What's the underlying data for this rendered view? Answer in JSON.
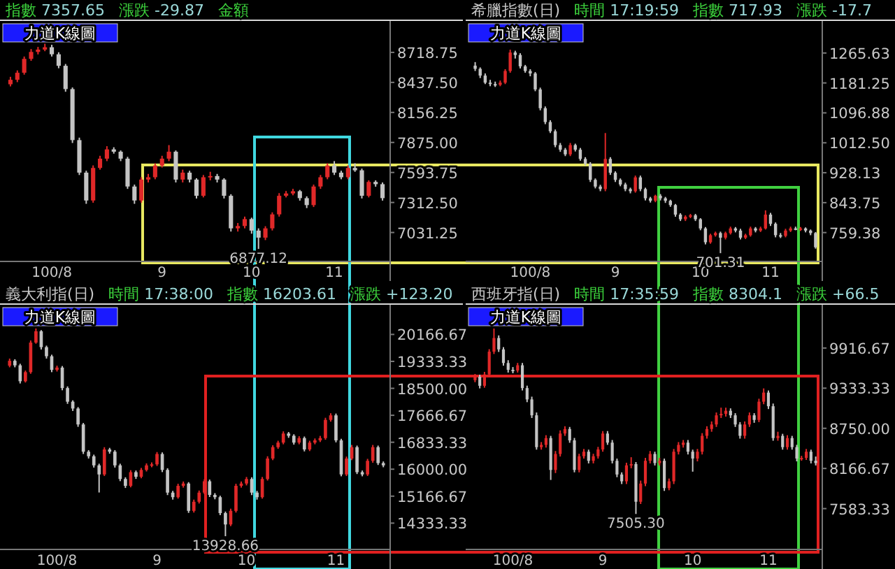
{
  "chart_data": [
    {
      "type": "candlestick",
      "subtitle": "力道K線圖",
      "annotations": [
        "指數 7357.65",
        "漲跌 -29.87",
        "金額",
        {
          "text": "6877.12",
          "y": 6877.12
        }
      ],
      "categories": [
        null,
        null,
        null,
        null,
        null,
        null,
        "100/8",
        null,
        null,
        null,
        null,
        null,
        null,
        null,
        null,
        null,
        null,
        null,
        null,
        null,
        null,
        null,
        "9",
        null,
        null,
        null,
        null,
        null,
        null,
        null,
        null,
        null,
        null,
        null,
        null,
        "10",
        null,
        null,
        null,
        null,
        null,
        null,
        null,
        null,
        null,
        null,
        null,
        "11",
        null,
        null,
        null,
        null,
        null,
        null,
        null
      ],
      "ohlc": [
        [
          8420,
          8490,
          8400,
          8462
        ],
        [
          8462,
          8550,
          8440,
          8528
        ],
        [
          8528,
          8680,
          8510,
          8658
        ],
        [
          8658,
          8750,
          8640,
          8723
        ],
        [
          8723,
          8770,
          8700,
          8745
        ],
        [
          8745,
          8800,
          8730,
          8767
        ],
        [
          8767,
          8790,
          8680,
          8701
        ],
        [
          8701,
          8720,
          8570,
          8593
        ],
        [
          8593,
          8610,
          8350,
          8375
        ],
        [
          8375,
          8390,
          7870,
          7897
        ],
        [
          7897,
          7920,
          7570,
          7592
        ],
        [
          7592,
          7610,
          7300,
          7331
        ],
        [
          7331,
          7660,
          7310,
          7636
        ],
        [
          7636,
          7750,
          7620,
          7723
        ],
        [
          7723,
          7840,
          7700,
          7810
        ],
        [
          7810,
          7830,
          7770,
          7788
        ],
        [
          7788,
          7800,
          7700,
          7723
        ],
        [
          7723,
          7740,
          7440,
          7462
        ],
        [
          7462,
          7480,
          7300,
          7331
        ],
        [
          7331,
          7550,
          7310,
          7527
        ],
        [
          7527,
          7580,
          7500,
          7549
        ],
        [
          7549,
          7680,
          7530,
          7658
        ],
        [
          7658,
          7750,
          7640,
          7723
        ],
        [
          7723,
          7850,
          7700,
          7788
        ],
        [
          7788,
          7800,
          7500,
          7527
        ],
        [
          7527,
          7620,
          7500,
          7592
        ],
        [
          7592,
          7610,
          7500,
          7527
        ],
        [
          7527,
          7540,
          7350,
          7375
        ],
        [
          7375,
          7570,
          7360,
          7549
        ],
        [
          7549,
          7600,
          7520,
          7560
        ],
        [
          7560,
          7580,
          7500,
          7527
        ],
        [
          7527,
          7540,
          7350,
          7375
        ],
        [
          7375,
          7390,
          7040,
          7070
        ],
        [
          7070,
          7120,
          7040,
          7092
        ],
        [
          7092,
          7180,
          7070,
          7157
        ],
        [
          7157,
          7170,
          7020,
          7049
        ],
        [
          7049,
          7070,
          6877.12,
          6983
        ],
        [
          6983,
          7090,
          6960,
          7070
        ],
        [
          7070,
          7220,
          7050,
          7201
        ],
        [
          7201,
          7400,
          7180,
          7375
        ],
        [
          7375,
          7420,
          7360,
          7397
        ],
        [
          7397,
          7440,
          7380,
          7418
        ],
        [
          7418,
          7430,
          7330,
          7353
        ],
        [
          7353,
          7370,
          7260,
          7288
        ],
        [
          7288,
          7480,
          7270,
          7462
        ],
        [
          7462,
          7570,
          7440,
          7549
        ],
        [
          7549,
          7680,
          7530,
          7658
        ],
        [
          7658,
          7700,
          7570,
          7592
        ],
        [
          7592,
          7610,
          7530,
          7549
        ],
        [
          7549,
          7660,
          7530,
          7636
        ],
        [
          7636,
          7680,
          7600,
          7614
        ],
        [
          7614,
          7630,
          7350,
          7375
        ],
        [
          7375,
          7520,
          7360,
          7505
        ],
        [
          7505,
          7520,
          7460,
          7484
        ],
        [
          7484,
          7500,
          7330,
          7353
        ]
      ],
      "ylim": [
        6760,
        9000
      ],
      "yticks": [
        {
          "value": 7031.25,
          "label": "7031.25"
        },
        {
          "value": 7312.5,
          "label": "7312.50"
        },
        {
          "value": 7593.75,
          "label": "7593.75"
        },
        {
          "value": 7875,
          "label": "7875.00"
        },
        {
          "value": 8156.25,
          "label": "8156.25"
        },
        {
          "value": 8437.5,
          "label": "8437.50"
        },
        {
          "value": 8718.75,
          "label": "8718.75"
        }
      ]
    },
    {
      "type": "candlestick",
      "title": "希臘指數(日)",
      "subtitle": "力道K線圖",
      "annotations": [
        "時間 17:19:59",
        "指數 717.93",
        "漲跌 -17.7",
        {
          "text": "701.31",
          "y": 701.31
        }
      ],
      "categories": [
        null,
        null,
        null,
        null,
        null,
        null,
        null,
        null,
        null,
        null,
        null,
        "100/8",
        null,
        null,
        null,
        null,
        null,
        null,
        null,
        null,
        null,
        null,
        null,
        null,
        null,
        null,
        null,
        null,
        "9",
        null,
        null,
        null,
        null,
        null,
        null,
        null,
        null,
        null,
        null,
        null,
        null,
        null,
        null,
        null,
        null,
        "10",
        null,
        null,
        null,
        null,
        null,
        null,
        null,
        null,
        null,
        null,
        null,
        null,
        null,
        "11",
        null,
        null,
        null,
        null,
        null,
        null,
        null,
        null,
        null
      ],
      "ohlc": [
        [
          1230,
          1240,
          1215,
          1221
        ],
        [
          1221,
          1225,
          1195,
          1202
        ],
        [
          1202,
          1208,
          1178,
          1182
        ],
        [
          1182,
          1190,
          1172,
          1178
        ],
        [
          1178,
          1185,
          1170,
          1176
        ],
        [
          1176,
          1188,
          1172,
          1182
        ],
        [
          1182,
          1220,
          1178,
          1215
        ],
        [
          1215,
          1275,
          1210,
          1267
        ],
        [
          1267,
          1272,
          1250,
          1260
        ],
        [
          1260,
          1265,
          1222,
          1228
        ],
        [
          1228,
          1232,
          1210,
          1215
        ],
        [
          1215,
          1220,
          1200,
          1208
        ],
        [
          1208,
          1212,
          1158,
          1163
        ],
        [
          1163,
          1168,
          1104,
          1110
        ],
        [
          1110,
          1115,
          1065,
          1071
        ],
        [
          1071,
          1076,
          1040,
          1045
        ],
        [
          1045,
          1050,
          1000,
          1006
        ],
        [
          1006,
          1012,
          987,
          993
        ],
        [
          993,
          998,
          975,
          980
        ],
        [
          980,
          1012,
          975,
          1006
        ],
        [
          1006,
          1010,
          988,
          993
        ],
        [
          993,
          998,
          962,
          967
        ],
        [
          967,
          972,
          948,
          954
        ],
        [
          954,
          958,
          902,
          908
        ],
        [
          908,
          912,
          884,
          889
        ],
        [
          889,
          894,
          876,
          882
        ],
        [
          882,
          1040,
          876,
          967
        ],
        [
          967,
          972,
          922,
          928
        ],
        [
          928,
          932,
          902,
          908
        ],
        [
          908,
          912,
          890,
          895
        ],
        [
          895,
          900,
          876,
          882
        ],
        [
          882,
          886,
          870,
          876
        ],
        [
          876,
          920,
          872,
          915
        ],
        [
          915,
          920,
          876,
          882
        ],
        [
          882,
          886,
          850,
          856
        ],
        [
          856,
          860,
          844,
          849
        ],
        [
          849,
          866,
          845,
          863
        ],
        [
          863,
          868,
          850,
          856
        ],
        [
          856,
          860,
          843,
          849
        ],
        [
          849,
          852,
          832,
          837
        ],
        [
          837,
          840,
          804,
          810
        ],
        [
          810,
          814,
          792,
          797
        ],
        [
          797,
          808,
          792,
          804
        ],
        [
          804,
          812,
          800,
          808
        ],
        [
          808,
          812,
          792,
          797
        ],
        [
          797,
          800,
          766,
          771
        ],
        [
          771,
          775,
          726,
          732
        ],
        [
          732,
          756,
          728,
          752
        ],
        [
          752,
          762,
          748,
          758
        ],
        [
          758,
          762,
          701.31,
          745
        ],
        [
          745,
          762,
          740,
          758
        ],
        [
          758,
          776,
          754,
          771
        ],
        [
          771,
          775,
          760,
          765
        ],
        [
          765,
          770,
          740,
          745
        ],
        [
          745,
          756,
          741,
          752
        ],
        [
          752,
          776,
          748,
          771
        ],
        [
          771,
          775,
          760,
          765
        ],
        [
          765,
          776,
          761,
          771
        ],
        [
          771,
          822,
          768,
          810
        ],
        [
          810,
          815,
          778,
          784
        ],
        [
          784,
          788,
          746,
          752
        ],
        [
          752,
          758,
          744,
          750
        ],
        [
          750,
          770,
          746,
          765
        ],
        [
          765,
          776,
          761,
          771
        ],
        [
          771,
          776,
          766,
          768
        ],
        [
          768,
          775,
          764,
          771
        ],
        [
          771,
          774,
          760,
          765
        ],
        [
          765,
          768,
          752,
          758
        ],
        [
          758,
          761,
          714,
          718
        ]
      ],
      "ylim": [
        678,
        1352
      ],
      "yticks": [
        {
          "value": 759.375,
          "label": "759.38"
        },
        {
          "value": 843.75,
          "label": "843.75"
        },
        {
          "value": 928.125,
          "label": "928.13"
        },
        {
          "value": 1012.5,
          "label": "1012.50"
        },
        {
          "value": 1096.875,
          "label": "1096.88"
        },
        {
          "value": 1181.25,
          "label": "1181.25"
        },
        {
          "value": 1265.625,
          "label": "1265.63"
        }
      ]
    },
    {
      "type": "candlestick",
      "title": "義大利指(日)",
      "subtitle": "力道K線圖",
      "annotations": [
        "時間 17:38:00",
        "指數 16203.61",
        "漲跌 +123.20",
        {
          "text": "13928.66",
          "y": 13928.66
        }
      ],
      "categories": [
        null,
        null,
        null,
        null,
        null,
        null,
        null,
        null,
        null,
        "100/8",
        null,
        null,
        null,
        null,
        null,
        null,
        null,
        null,
        null,
        null,
        null,
        null,
        null,
        null,
        null,
        null,
        null,
        null,
        "9",
        null,
        null,
        null,
        null,
        null,
        null,
        null,
        null,
        null,
        null,
        null,
        null,
        null,
        null,
        null,
        null,
        "10",
        null,
        null,
        null,
        null,
        null,
        null,
        null,
        null,
        null,
        null,
        null,
        null,
        null,
        null,
        null,
        null,
        "11",
        null,
        null,
        null,
        null,
        null,
        null,
        null,
        null,
        null
      ],
      "ohlc": [
        [
          19200,
          19420,
          19150,
          19352
        ],
        [
          19352,
          19400,
          19150,
          19211
        ],
        [
          19211,
          19260,
          18650,
          18719
        ],
        [
          18719,
          19050,
          18680,
          19000
        ],
        [
          19000,
          19980,
          18950,
          19914
        ],
        [
          19914,
          20350,
          19880,
          20265
        ],
        [
          20265,
          20300,
          19700,
          19773
        ],
        [
          19773,
          19820,
          19420,
          19492
        ],
        [
          19492,
          19540,
          19000,
          19071
        ],
        [
          19071,
          19200,
          19020,
          19141
        ],
        [
          19141,
          19190,
          18440,
          18508
        ],
        [
          18508,
          18560,
          18020,
          18087
        ],
        [
          18087,
          18130,
          17800,
          17876
        ],
        [
          17876,
          17920,
          17310,
          17384
        ],
        [
          17384,
          17430,
          16470,
          16541
        ],
        [
          16541,
          16590,
          16330,
          16400
        ],
        [
          16400,
          16450,
          16050,
          16119
        ],
        [
          16119,
          16170,
          15280,
          15838
        ],
        [
          15838,
          16680,
          15790,
          16611
        ],
        [
          16611,
          16660,
          16480,
          16541
        ],
        [
          16541,
          16590,
          16050,
          16119
        ],
        [
          16119,
          16170,
          15630,
          15697
        ],
        [
          15697,
          15750,
          15420,
          15486
        ],
        [
          15486,
          15970,
          15440,
          15908
        ],
        [
          15908,
          15960,
          15700,
          15767
        ],
        [
          15767,
          16040,
          15720,
          15978
        ],
        [
          15978,
          16180,
          15930,
          16119
        ],
        [
          16119,
          16210,
          16060,
          16150
        ],
        [
          16150,
          16530,
          16100,
          16470
        ],
        [
          16470,
          16520,
          15910,
          15978
        ],
        [
          15978,
          16030,
          15200,
          15276
        ],
        [
          15276,
          15330,
          15060,
          15135
        ],
        [
          15135,
          15550,
          15090,
          15486
        ],
        [
          15486,
          15620,
          15430,
          15557
        ],
        [
          15557,
          15600,
          14650,
          14713
        ],
        [
          14713,
          15060,
          14660,
          14994
        ],
        [
          14994,
          15340,
          14940,
          15276
        ],
        [
          15276,
          15690,
          15230,
          15627
        ],
        [
          15627,
          15680,
          15140,
          15205
        ],
        [
          15205,
          15260,
          15070,
          15135
        ],
        [
          15135,
          15180,
          14580,
          14643
        ],
        [
          14643,
          14690,
          13928.66,
          14292
        ],
        [
          14292,
          14780,
          14240,
          14713
        ],
        [
          14713,
          15550,
          14660,
          15486
        ],
        [
          15486,
          15620,
          15430,
          15557
        ],
        [
          15557,
          15760,
          15500,
          15697
        ],
        [
          15697,
          15750,
          15200,
          15276
        ],
        [
          15276,
          15330,
          15060,
          15135
        ],
        [
          15135,
          15760,
          15090,
          15697
        ],
        [
          15697,
          16400,
          15650,
          16330
        ],
        [
          16330,
          16740,
          16280,
          16681
        ],
        [
          16681,
          16880,
          16630,
          16822
        ],
        [
          16822,
          17170,
          16770,
          17103
        ],
        [
          17103,
          17150,
          16970,
          17033
        ],
        [
          17033,
          17080,
          16760,
          16822
        ],
        [
          16822,
          17020,
          16770,
          16962
        ],
        [
          16962,
          17010,
          16550,
          16611
        ],
        [
          16611,
          16880,
          16560,
          16822
        ],
        [
          16822,
          16950,
          16770,
          16892
        ],
        [
          16892,
          17030,
          16840,
          16962
        ],
        [
          16962,
          17590,
          16910,
          17524
        ],
        [
          17524,
          17730,
          17470,
          17665
        ],
        [
          17665,
          17720,
          16830,
          16892
        ],
        [
          16892,
          16940,
          15780,
          15838
        ],
        [
          15838,
          16390,
          15790,
          16330
        ],
        [
          16330,
          16750,
          16280,
          16681
        ],
        [
          16681,
          16730,
          15850,
          15908
        ],
        [
          15908,
          15960,
          15780,
          15838
        ],
        [
          15838,
          16320,
          15790,
          16259
        ],
        [
          16259,
          16750,
          16200,
          16681
        ],
        [
          16681,
          16730,
          16130,
          16189
        ],
        [
          16189,
          16240,
          16060,
          16119
        ]
      ],
      "ylim": [
        13520,
        21040
      ],
      "yticks": [
        {
          "value": 14333.33,
          "label": "14333.33"
        },
        {
          "value": 15166.67,
          "label": "15166.67"
        },
        {
          "value": 16000,
          "label": "16000.00"
        },
        {
          "value": 16833.33,
          "label": "16833.33"
        },
        {
          "value": 17666.67,
          "label": "17666.67"
        },
        {
          "value": 18500,
          "label": "18500.00"
        },
        {
          "value": 19333.33,
          "label": "19333.33"
        },
        {
          "value": 20166.67,
          "label": "20166.67"
        }
      ]
    },
    {
      "type": "candlestick",
      "title": "西班牙指(日)",
      "subtitle": "力道K線圖",
      "annotations": [
        "時間 17:35:59",
        "指數 8304.1",
        "漲跌 +66.5",
        {
          "text": "7505.30",
          "y": 7505.3
        }
      ],
      "categories": [
        null,
        null,
        null,
        null,
        null,
        null,
        null,
        null,
        "100/8",
        null,
        null,
        null,
        null,
        null,
        null,
        null,
        null,
        null,
        null,
        null,
        null,
        null,
        null,
        null,
        null,
        null,
        null,
        "9",
        null,
        null,
        null,
        null,
        null,
        null,
        null,
        null,
        null,
        null,
        null,
        null,
        null,
        null,
        null,
        null,
        null,
        null,
        "10",
        null,
        null,
        null,
        null,
        null,
        null,
        null,
        null,
        null,
        null,
        null,
        null,
        null,
        null,
        null,
        "11",
        null,
        null,
        null,
        null,
        null,
        null,
        null,
        null,
        null,
        null
      ],
      "ohlc": [
        [
          9450,
          9540,
          9420,
          9500
        ],
        [
          9500,
          9530,
          9330,
          9368
        ],
        [
          9368,
          9570,
          9340,
          9533
        ],
        [
          9533,
          9900,
          9500,
          9864
        ],
        [
          9864,
          10200,
          9830,
          10062
        ],
        [
          10062,
          10100,
          9860,
          9897
        ],
        [
          9897,
          9930,
          9660,
          9699
        ],
        [
          9699,
          9740,
          9560,
          9600
        ],
        [
          9600,
          9640,
          9550,
          9590
        ],
        [
          9590,
          9700,
          9560,
          9666
        ],
        [
          9666,
          9700,
          9300,
          9335
        ],
        [
          9335,
          9370,
          9130,
          9170
        ],
        [
          9170,
          9210,
          8900,
          8939
        ],
        [
          8939,
          8980,
          8440,
          8476
        ],
        [
          8476,
          8550,
          8440,
          8509
        ],
        [
          8509,
          8650,
          8470,
          8608
        ],
        [
          8608,
          8640,
          8000,
          8145
        ],
        [
          8145,
          8420,
          8100,
          8377
        ],
        [
          8377,
          8720,
          8340,
          8674
        ],
        [
          8674,
          8780,
          8640,
          8740
        ],
        [
          8740,
          8770,
          8540,
          8575
        ],
        [
          8575,
          8610,
          8110,
          8145
        ],
        [
          8145,
          8380,
          8110,
          8344
        ],
        [
          8344,
          8450,
          8310,
          8410
        ],
        [
          8410,
          8440,
          8240,
          8278
        ],
        [
          8278,
          8380,
          8240,
          8344
        ],
        [
          8344,
          8480,
          8310,
          8443
        ],
        [
          8443,
          8710,
          8410,
          8674
        ],
        [
          8674,
          8710,
          8510,
          8542
        ],
        [
          8542,
          8580,
          8240,
          8278
        ],
        [
          8278,
          8310,
          8040,
          8079
        ],
        [
          8079,
          8110,
          7940,
          7980
        ],
        [
          7980,
          8250,
          7940,
          8212
        ],
        [
          8212,
          8330,
          8170,
          8230
        ],
        [
          8230,
          8260,
          7505.3,
          7683
        ],
        [
          7683,
          7990,
          7650,
          7947
        ],
        [
          7947,
          8320,
          7910,
          8278
        ],
        [
          8278,
          8420,
          8240,
          8377
        ],
        [
          8377,
          8410,
          8210,
          8245
        ],
        [
          8245,
          8320,
          8210,
          8278
        ],
        [
          8278,
          8310,
          7840,
          7881
        ],
        [
          7881,
          8020,
          7850,
          7980
        ],
        [
          7980,
          8450,
          7940,
          8410
        ],
        [
          8410,
          8550,
          8370,
          8509
        ],
        [
          8509,
          8580,
          8470,
          8542
        ],
        [
          8542,
          8580,
          8370,
          8410
        ],
        [
          8410,
          8440,
          8120,
          8311
        ],
        [
          8311,
          8450,
          8270,
          8410
        ],
        [
          8410,
          8680,
          8370,
          8641
        ],
        [
          8641,
          8780,
          8600,
          8740
        ],
        [
          8740,
          8850,
          8700,
          8806
        ],
        [
          8806,
          8980,
          8770,
          8939
        ],
        [
          8939,
          9050,
          8900,
          8960
        ],
        [
          8960,
          9050,
          8920,
          9005
        ],
        [
          9005,
          9040,
          8900,
          8939
        ],
        [
          8939,
          8970,
          8770,
          8806
        ],
        [
          8806,
          8840,
          8600,
          8641
        ],
        [
          8641,
          8850,
          8600,
          8806
        ],
        [
          8806,
          8980,
          8770,
          8939
        ],
        [
          8939,
          8970,
          8830,
          8872
        ],
        [
          8872,
          9180,
          8840,
          9137
        ],
        [
          9137,
          9330,
          9100,
          9269
        ],
        [
          9269,
          9300,
          9030,
          9071
        ],
        [
          9071,
          9110,
          8570,
          8608
        ],
        [
          8608,
          8700,
          8570,
          8640
        ],
        [
          8640,
          8670,
          8440,
          8476
        ],
        [
          8476,
          8650,
          8440,
          8608
        ],
        [
          8608,
          8640,
          8440,
          8476
        ],
        [
          8476,
          8510,
          8270,
          8311
        ],
        [
          8311,
          8350,
          8280,
          8320
        ],
        [
          8320,
          8450,
          8290,
          8410
        ],
        [
          8410,
          8440,
          8240,
          8278
        ],
        [
          8278,
          8340,
          8210,
          8245
        ]
      ],
      "ylim": [
        6990,
        10525
      ],
      "yticks": [
        {
          "value": 7583.33,
          "label": "7583.33"
        },
        {
          "value": 8166.67,
          "label": "8166.67"
        },
        {
          "value": 8750,
          "label": "8750.00"
        },
        {
          "value": 9333.33,
          "label": "9333.33"
        },
        {
          "value": 9916.67,
          "label": "9916.67"
        }
      ]
    }
  ]
}
